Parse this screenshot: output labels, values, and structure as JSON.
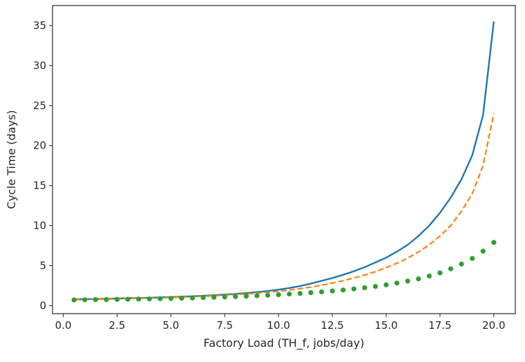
{
  "chart_data": {
    "type": "line",
    "title": "",
    "xlabel": "Factory Load (TH_f, jobs/day)",
    "ylabel": "Cycle Time (days)",
    "xlim": [
      -0.5,
      21.0
    ],
    "ylim": [
      -1.0,
      37.5
    ],
    "xticks": [
      0.0,
      2.5,
      5.0,
      7.5,
      10.0,
      12.5,
      15.0,
      17.5,
      20.0
    ],
    "xtick_labels": [
      "0.0",
      "2.5",
      "5.0",
      "7.5",
      "10.0",
      "12.5",
      "15.0",
      "17.5",
      "20.0"
    ],
    "yticks": [
      0,
      5,
      10,
      15,
      20,
      25,
      30,
      35
    ],
    "ytick_labels": [
      "0",
      "5",
      "10",
      "15",
      "20",
      "25",
      "30",
      "35"
    ],
    "grid": false,
    "legend": "none",
    "x": [
      0.5,
      1.0,
      1.5,
      2.0,
      2.5,
      3.0,
      3.5,
      4.0,
      4.5,
      5.0,
      5.5,
      6.0,
      6.5,
      7.0,
      7.5,
      8.0,
      8.5,
      9.0,
      9.5,
      10.0,
      10.5,
      11.0,
      11.5,
      12.0,
      12.5,
      13.0,
      13.5,
      14.0,
      14.5,
      15.0,
      15.5,
      16.0,
      16.5,
      17.0,
      17.5,
      18.0,
      18.5,
      19.0,
      19.5,
      20.0
    ],
    "series": [
      {
        "color": "#1f77b4",
        "style": "solid",
        "values": [
          0.79,
          0.81,
          0.84,
          0.86,
          0.89,
          0.92,
          0.95,
          0.99,
          1.03,
          1.07,
          1.12,
          1.17,
          1.23,
          1.3,
          1.38,
          1.47,
          1.57,
          1.69,
          1.83,
          2.0,
          2.2,
          2.45,
          2.75,
          3.1,
          3.45,
          3.85,
          4.3,
          4.8,
          5.4,
          6.0,
          6.75,
          7.6,
          8.7,
          10.0,
          11.6,
          13.5,
          15.8,
          18.8,
          23.8,
          35.5
        ]
      },
      {
        "color": "#ff7f0e",
        "style": "dashed",
        "values": [
          0.76,
          0.78,
          0.8,
          0.82,
          0.85,
          0.88,
          0.91,
          0.94,
          0.98,
          1.02,
          1.06,
          1.11,
          1.17,
          1.23,
          1.3,
          1.38,
          1.46,
          1.56,
          1.67,
          1.8,
          1.95,
          2.12,
          2.32,
          2.55,
          2.82,
          3.12,
          3.45,
          3.82,
          4.25,
          4.75,
          5.3,
          5.95,
          6.7,
          7.6,
          8.7,
          10.0,
          11.8,
          14.0,
          17.5,
          24.0
        ]
      },
      {
        "color": "#2ca02c",
        "style": "dotted",
        "values": [
          0.72,
          0.73,
          0.75,
          0.76,
          0.78,
          0.8,
          0.82,
          0.84,
          0.87,
          0.9,
          0.93,
          0.96,
          1.0,
          1.04,
          1.08,
          1.13,
          1.18,
          1.24,
          1.3,
          1.37,
          1.45,
          1.53,
          1.62,
          1.72,
          1.83,
          1.95,
          2.09,
          2.24,
          2.4,
          2.6,
          2.82,
          3.07,
          3.35,
          3.7,
          4.1,
          4.6,
          5.2,
          5.9,
          6.8,
          7.9
        ]
      }
    ]
  }
}
